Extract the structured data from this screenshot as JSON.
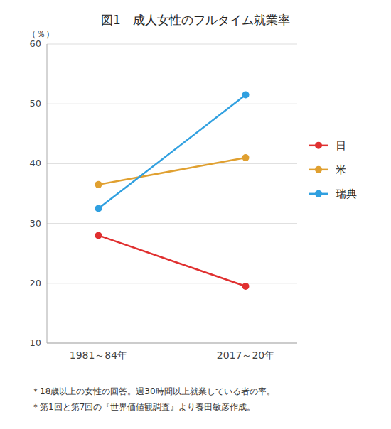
{
  "chart_data": {
    "type": "line",
    "title": "図1　成人女性のフルタイム就業率",
    "ylabel": "（％）",
    "categories": [
      "1981～84年",
      "2017～20年"
    ],
    "series": [
      {
        "name": "日",
        "color": "#e03030",
        "values": [
          28,
          19.5
        ]
      },
      {
        "name": "米",
        "color": "#e0a030",
        "values": [
          36.5,
          41
        ]
      },
      {
        "name": "瑞典",
        "color": "#30a0e0",
        "values": [
          32.5,
          51.5
        ]
      }
    ],
    "ylim": [
      10,
      60
    ],
    "yticks": [
      10,
      20,
      30,
      40,
      50,
      60
    ],
    "grid": true,
    "legend": "right",
    "marker": "circle",
    "annotations": [
      "＊18歳以上の女性の回答。週30時間以上就業している者の率。",
      "＊第1回と第7回の『世界価値観調査』より養田敏彦作成。"
    ]
  }
}
